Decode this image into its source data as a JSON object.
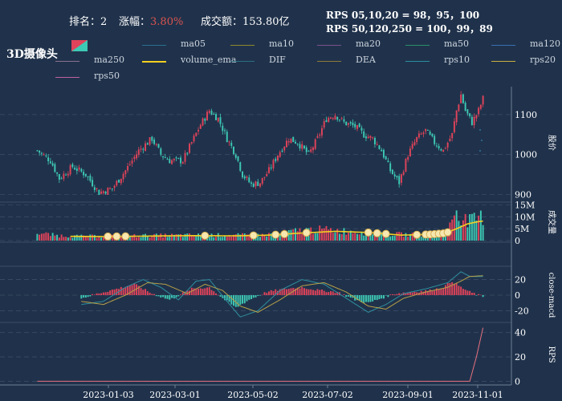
{
  "header": {
    "rank_label": "排名：",
    "rank_value": "2",
    "change_label": "涨幅：",
    "change_value": "3.80%",
    "turnover_label": "成交额：",
    "turnover_value": "153.80亿",
    "rps_line1": "RPS 05,10,20 = 98，95，100",
    "rps_line2": "RPS 50,120,250 = 100，99，89"
  },
  "title": "3D摄像头",
  "legend": [
    {
      "name": "ma05",
      "color": "#2a6f8f"
    },
    {
      "name": "ma10",
      "color": "#8f8a2a"
    },
    {
      "name": "ma20",
      "color": "#7a4f8f"
    },
    {
      "name": "ma50",
      "color": "#2a8f6a"
    },
    {
      "name": "ma120",
      "color": "#3a6fb0"
    },
    {
      "name": "ma250",
      "color": "#8a6f8f"
    },
    {
      "name": "volume_ema",
      "color": "#f5d020"
    },
    {
      "name": "DIF",
      "color": "#2a6f7f"
    },
    {
      "name": "DEA",
      "color": "#8f7a3a"
    },
    {
      "name": "rps10",
      "color": "#2a8f9f"
    },
    {
      "name": "rps20",
      "color": "#c8b040"
    },
    {
      "name": "rps50",
      "color": "#c060a0"
    }
  ],
  "colors": {
    "up": "#e0435a",
    "down": "#3ec9b4",
    "rps": "#e87080",
    "grid": "#3a4c66"
  },
  "chart_data": {
    "type": "candlestick",
    "x_ticks": [
      "2023-01-03",
      "2023-03-01",
      "2023-05-02",
      "2023-07-02",
      "2023-09-01",
      "2023-11-01"
    ],
    "price": {
      "ylabel": "股价",
      "ticks": [
        900,
        1000,
        1100
      ],
      "ylim": [
        885,
        1170
      ],
      "trend": [
        [
          0,
          1010
        ],
        [
          6,
          985
        ],
        [
          10,
          940
        ],
        [
          16,
          970
        ],
        [
          22,
          950
        ],
        [
          28,
          905
        ],
        [
          34,
          915
        ],
        [
          40,
          960
        ],
        [
          46,
          1010
        ],
        [
          52,
          1040
        ],
        [
          56,
          1000
        ],
        [
          60,
          985
        ],
        [
          66,
          985
        ],
        [
          70,
          1030
        ],
        [
          74,
          1075
        ],
        [
          78,
          1110
        ],
        [
          82,
          1090
        ],
        [
          86,
          1040
        ],
        [
          90,
          1000
        ],
        [
          93,
          950
        ],
        [
          97,
          925
        ],
        [
          101,
          930
        ],
        [
          105,
          960
        ],
        [
          109,
          1000
        ],
        [
          114,
          1040
        ],
        [
          118,
          1030
        ],
        [
          123,
          1000
        ],
        [
          127,
          1040
        ],
        [
          131,
          1090
        ],
        [
          135,
          1100
        ],
        [
          139,
          1080
        ],
        [
          144,
          1070
        ],
        [
          148,
          1050
        ],
        [
          152,
          1040
        ],
        [
          156,
          1010
        ],
        [
          160,
          960
        ],
        [
          164,
          930
        ],
        [
          168,
          1000
        ],
        [
          172,
          1040
        ],
        [
          176,
          1060
        ],
        [
          180,
          1030
        ],
        [
          184,
          1010
        ],
        [
          188,
          1050
        ],
        [
          190,
          1110
        ],
        [
          192,
          1150
        ],
        [
          194,
          1110
        ],
        [
          197,
          1080
        ],
        [
          200,
          1110
        ],
        [
          202,
          1140
        ]
      ]
    },
    "volume": {
      "ylabel": "成交量",
      "ticks": [
        "0",
        "5M",
        "10M",
        "15M"
      ],
      "ylim": [
        0,
        15.5
      ],
      "trend": [
        [
          0,
          3.2
        ],
        [
          8,
          2.2
        ],
        [
          20,
          1.8
        ],
        [
          40,
          2.0
        ],
        [
          60,
          2.2
        ],
        [
          80,
          2.3
        ],
        [
          100,
          2.2
        ],
        [
          110,
          3.0
        ],
        [
          120,
          4.4
        ],
        [
          130,
          4.6
        ],
        [
          140,
          4.0
        ],
        [
          160,
          2.8
        ],
        [
          170,
          2.4
        ],
        [
          180,
          3.0
        ],
        [
          186,
          3.8
        ],
        [
          188,
          10.0
        ],
        [
          190,
          13.5
        ],
        [
          193,
          9.0
        ],
        [
          196,
          8.0
        ],
        [
          199,
          9.0
        ],
        [
          202,
          10.0
        ]
      ],
      "ema_trend": [
        [
          15,
          1.8
        ],
        [
          30,
          1.7
        ],
        [
          50,
          1.9
        ],
        [
          70,
          2.1
        ],
        [
          90,
          2.0
        ],
        [
          105,
          2.3
        ],
        [
          120,
          3.2
        ],
        [
          135,
          3.9
        ],
        [
          150,
          3.4
        ],
        [
          165,
          2.3
        ],
        [
          178,
          2.6
        ],
        [
          185,
          3.1
        ],
        [
          190,
          5.0
        ],
        [
          195,
          7.0
        ],
        [
          200,
          8.0
        ],
        [
          202,
          8.2
        ]
      ],
      "markers": [
        32,
        36,
        40,
        76,
        98,
        108,
        112,
        122,
        150,
        154,
        158,
        172,
        176,
        178,
        180,
        182,
        184,
        186
      ]
    },
    "macd": {
      "ylabel": "close-macd",
      "ticks": [
        20,
        0,
        -20
      ],
      "ylim": [
        -35,
        35
      ],
      "hist_trend": [
        [
          20,
          -4
        ],
        [
          30,
          4
        ],
        [
          36,
          8
        ],
        [
          44,
          14
        ],
        [
          52,
          2
        ],
        [
          60,
          -6
        ],
        [
          70,
          8
        ],
        [
          78,
          10
        ],
        [
          84,
          -4
        ],
        [
          90,
          -16
        ],
        [
          96,
          -6
        ],
        [
          104,
          4
        ],
        [
          112,
          8
        ],
        [
          120,
          10
        ],
        [
          128,
          6
        ],
        [
          136,
          4
        ],
        [
          144,
          -6
        ],
        [
          150,
          -10
        ],
        [
          156,
          -4
        ],
        [
          162,
          2
        ],
        [
          170,
          4
        ],
        [
          178,
          6
        ],
        [
          184,
          10
        ],
        [
          188,
          18
        ],
        [
          192,
          10
        ],
        [
          196,
          4
        ],
        [
          202,
          -2
        ]
      ],
      "dif_trend": [
        [
          20,
          -12
        ],
        [
          30,
          -8
        ],
        [
          40,
          10
        ],
        [
          48,
          20
        ],
        [
          56,
          10
        ],
        [
          64,
          -6
        ],
        [
          72,
          18
        ],
        [
          78,
          20
        ],
        [
          86,
          -8
        ],
        [
          92,
          -28
        ],
        [
          100,
          -20
        ],
        [
          110,
          6
        ],
        [
          120,
          20
        ],
        [
          130,
          14
        ],
        [
          140,
          -4
        ],
        [
          150,
          -22
        ],
        [
          158,
          -12
        ],
        [
          166,
          2
        ],
        [
          176,
          8
        ],
        [
          186,
          16
        ],
        [
          192,
          30
        ],
        [
          196,
          24
        ],
        [
          202,
          24
        ]
      ],
      "dea_trend": [
        [
          20,
          -8
        ],
        [
          30,
          -12
        ],
        [
          40,
          0
        ],
        [
          50,
          16
        ],
        [
          58,
          14
        ],
        [
          68,
          2
        ],
        [
          76,
          14
        ],
        [
          84,
          6
        ],
        [
          92,
          -14
        ],
        [
          100,
          -22
        ],
        [
          110,
          -6
        ],
        [
          120,
          12
        ],
        [
          130,
          16
        ],
        [
          140,
          4
        ],
        [
          150,
          -14
        ],
        [
          158,
          -18
        ],
        [
          166,
          -4
        ],
        [
          176,
          4
        ],
        [
          186,
          10
        ],
        [
          192,
          18
        ],
        [
          196,
          24
        ],
        [
          202,
          25
        ]
      ]
    },
    "rps": {
      "ylabel": "RPS",
      "ticks": [
        0,
        20,
        40
      ],
      "ylim": [
        -3,
        47
      ],
      "series_name": "rps50",
      "trend": [
        [
          0,
          0
        ],
        [
          196,
          0
        ],
        [
          199,
          20
        ],
        [
          202,
          44
        ]
      ]
    }
  }
}
